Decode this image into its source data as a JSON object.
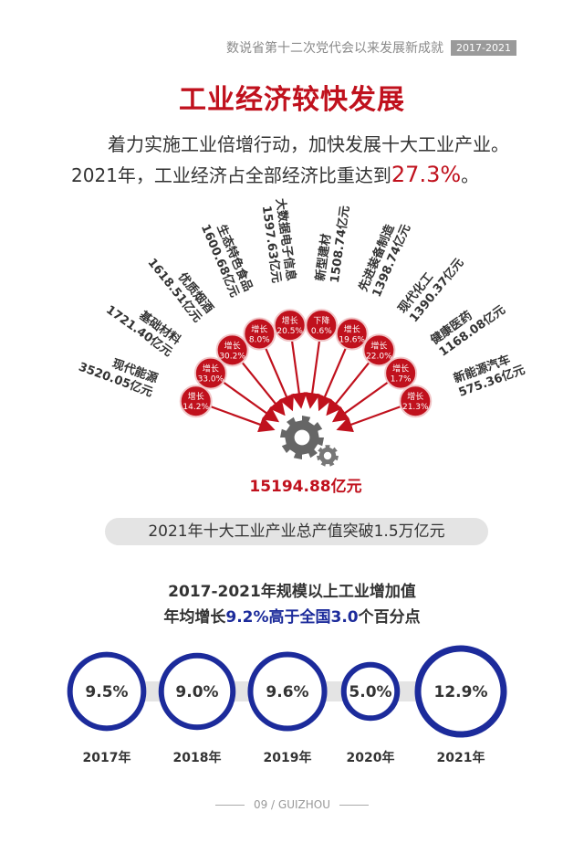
{
  "header": {
    "title": "数说省第十二次党代会以来发展新成就",
    "badge": "2017-2021"
  },
  "section_title": "工业经济较快发展",
  "intro": {
    "line1": "着力实施工业倍增行动，加快发展十大工业产业。",
    "line2_prefix": "2021年，工业经济占全部经济比重达到",
    "line2_value": "27.3%",
    "line2_suffix": "。"
  },
  "industries": [
    {
      "name": "现代能源",
      "value": "3520.05亿元",
      "growth_label": "增长",
      "growth": "14.2%"
    },
    {
      "name": "基础材料",
      "value": "1721.40亿元",
      "growth_label": "增长",
      "growth": "33.0%"
    },
    {
      "name": "优质烟酒",
      "value": "1618.51亿元",
      "growth_label": "增长",
      "growth": "30.2%"
    },
    {
      "name": "生态特色食品",
      "value": "1600.68亿元",
      "growth_label": "增长",
      "growth": "8.0%"
    },
    {
      "name": "大数据电子信息",
      "value": "1597.63亿元",
      "growth_label": "增长",
      "growth": "20.5%"
    },
    {
      "name": "新型建材",
      "value": "1508.74亿元",
      "growth_label": "下降",
      "growth": "0.6%"
    },
    {
      "name": "先进装备制造",
      "value": "1398.74亿元",
      "growth_label": "增长",
      "growth": "19.6%"
    },
    {
      "name": "现代化工",
      "value": "1390.37亿元",
      "growth_label": "增长",
      "growth": "22.0%"
    },
    {
      "name": "健康医药",
      "value": "1168.08亿元",
      "growth_label": "增长",
      "growth": "1.7%"
    },
    {
      "name": "新能源汽车",
      "value": "575.36亿元",
      "growth_label": "增长",
      "growth": "21.3%"
    }
  ],
  "total": "15194.88亿元",
  "banner": "2021年十大工业产业总产值突破1.5万亿元",
  "growth_title": "2017-2021年规模以上工业增加值",
  "growth_sub": {
    "p1": "年均增长",
    "v1": "9.2%",
    "p2": "高于全国",
    "v2": "3.0",
    "p3": "个百分点"
  },
  "yearly": [
    {
      "year": "2017年",
      "value": 9.5,
      "label": "9.5%"
    },
    {
      "year": "2018年",
      "value": 9.0,
      "label": "9.0%"
    },
    {
      "year": "2019年",
      "value": 9.6,
      "label": "9.6%"
    },
    {
      "year": "2020年",
      "value": 5.0,
      "label": "5.0%"
    },
    {
      "year": "2021年",
      "value": 12.9,
      "label": "12.9%"
    }
  ],
  "footer": "09 / GUIZHOU",
  "colors": {
    "red": "#c0111d",
    "blue": "#1c2b9b",
    "gray": "#e4e4e4"
  }
}
